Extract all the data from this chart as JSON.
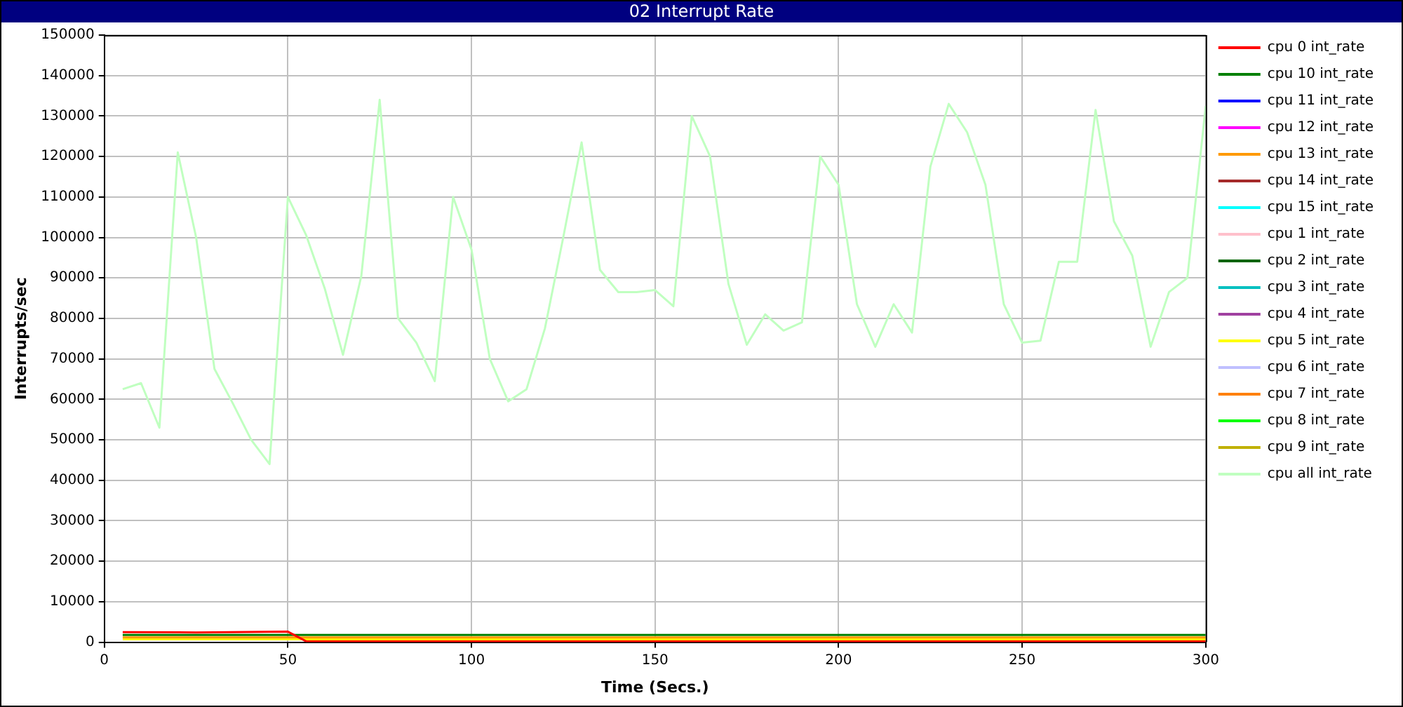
{
  "chart_data": {
    "type": "line",
    "title": "02 Interrupt Rate",
    "xlabel": "Time (Secs.)",
    "ylabel": "Interrupts/sec",
    "xlim": [
      0,
      300
    ],
    "xticks": [
      0,
      50,
      100,
      150,
      200,
      250,
      300
    ],
    "ylim": [
      0,
      150000
    ],
    "yticks": [
      0,
      10000,
      20000,
      30000,
      40000,
      50000,
      60000,
      70000,
      80000,
      90000,
      100000,
      110000,
      120000,
      130000,
      140000,
      150000
    ],
    "grid": true,
    "legend": "right",
    "marker": "none",
    "line_style": "solid",
    "series": [
      {
        "name": "cpu 0 int_rate",
        "color": "#ff0000",
        "x": [
          5,
          25,
          50,
          55,
          100,
          150,
          200,
          250,
          300
        ],
        "values": [
          2500,
          2400,
          2600,
          200,
          200,
          200,
          200,
          200,
          200
        ]
      },
      {
        "name": "cpu 10 int_rate",
        "color": "#008000",
        "x": [
          5,
          25,
          50,
          55,
          100,
          150,
          200,
          250,
          300
        ],
        "values": [
          1800,
          1800,
          1800,
          1800,
          1800,
          1800,
          1800,
          1800,
          1800
        ]
      },
      {
        "name": "cpu 11 int_rate",
        "color": "#0000ff"
      },
      {
        "name": "cpu 12 int_rate",
        "color": "#ff00ff"
      },
      {
        "name": "cpu 13 int_rate",
        "color": "#ff9900",
        "x": [
          5,
          25,
          50,
          55,
          100,
          150,
          200,
          250,
          300
        ],
        "values": [
          1200,
          1200,
          1200,
          1200,
          1200,
          1200,
          1200,
          1200,
          1200
        ]
      },
      {
        "name": "cpu 14 int_rate",
        "color": "#a52a2a"
      },
      {
        "name": "cpu 15 int_rate",
        "color": "#00ffff"
      },
      {
        "name": "cpu 1 int_rate",
        "color": "#ffc0cb"
      },
      {
        "name": "cpu 2 int_rate",
        "color": "#006400"
      },
      {
        "name": "cpu 3 int_rate",
        "color": "#00c0c0"
      },
      {
        "name": "cpu 4 int_rate",
        "color": "#a040a0"
      },
      {
        "name": "cpu 5 int_rate",
        "color": "#ffff00",
        "x": [
          5,
          25,
          50,
          55,
          100,
          150,
          200,
          250,
          300
        ],
        "values": [
          700,
          700,
          700,
          700,
          700,
          700,
          700,
          700,
          700
        ]
      },
      {
        "name": "cpu 6 int_rate",
        "color": "#c0c0ff"
      },
      {
        "name": "cpu 7 int_rate",
        "color": "#ff8000"
      },
      {
        "name": "cpu 8 int_rate",
        "color": "#00ff00"
      },
      {
        "name": "cpu 9 int_rate",
        "color": "#c0b000"
      },
      {
        "name": "cpu all int_rate",
        "color": "#c0ffc0",
        "x": [
          5,
          10,
          15,
          20,
          25,
          30,
          35,
          40,
          45,
          50,
          55,
          60,
          65,
          70,
          75,
          80,
          85,
          90,
          95,
          100,
          105,
          110,
          115,
          120,
          125,
          130,
          135,
          140,
          145,
          150,
          155,
          160,
          165,
          170,
          175,
          180,
          185,
          190,
          195,
          200,
          205,
          210,
          215,
          220,
          225,
          230,
          235,
          240,
          245,
          250,
          255,
          260,
          265,
          270,
          275,
          280,
          285,
          290,
          295,
          300
        ],
        "values": [
          62500,
          64000,
          53000,
          121000,
          100000,
          67500,
          59000,
          50000,
          44000,
          110000,
          100500,
          87500,
          71000,
          90500,
          134000,
          80000,
          74000,
          64500,
          110000,
          97000,
          70000,
          59500,
          62500,
          77500,
          100000,
          123500,
          92000,
          86500,
          86500,
          87000,
          83000,
          130000,
          120000,
          88500,
          73500,
          81000,
          77000,
          79000,
          120000,
          113000,
          83500,
          73000,
          83500,
          76500,
          117500,
          133000,
          126000,
          113000,
          83500,
          74000,
          74500,
          94000,
          94000,
          131500,
          104000,
          95500,
          73000,
          86500,
          90000,
          132500
        ]
      }
    ]
  }
}
